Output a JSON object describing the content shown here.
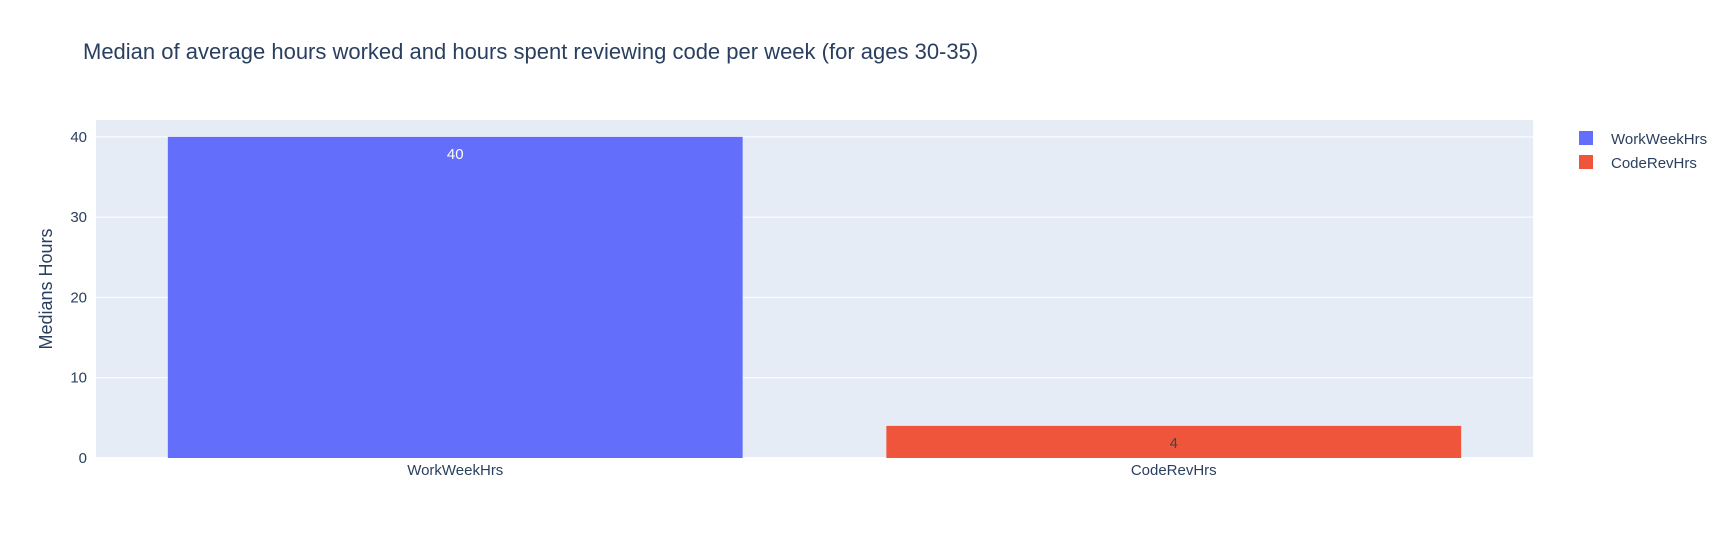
{
  "chart_data": {
    "type": "bar",
    "title": "Median of average hours worked and hours spent reviewing code per week (for ages 30-35)",
    "xlabel": "",
    "ylabel": "Medians Hours",
    "categories": [
      "WorkWeekHrs",
      "CodeRevHrs"
    ],
    "series": [
      {
        "name": "WorkWeekHrs",
        "values": [
          40,
          null
        ],
        "color": "#636efa",
        "label_color": "#ffffff"
      },
      {
        "name": "CodeRevHrs",
        "values": [
          null,
          4
        ],
        "color": "#ef553b",
        "label_color": "#444444"
      }
    ],
    "data_labels": [
      "40",
      "4"
    ],
    "ylim": [
      0,
      42.1
    ],
    "yticks": [
      0,
      10,
      20,
      30,
      40
    ],
    "ytick_labels": [
      "0",
      "10",
      "20",
      "30",
      "40"
    ],
    "grid": true,
    "legend_position": "top-right",
    "plot_background": "#e5ecf6",
    "grid_color": "#ffffff"
  }
}
